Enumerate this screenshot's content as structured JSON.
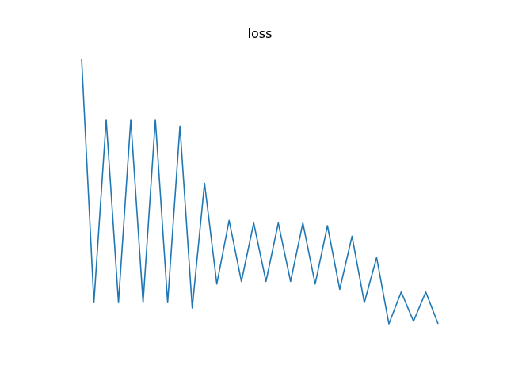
{
  "chart_data": {
    "type": "line",
    "title": "loss",
    "xlabel": "",
    "ylabel": "",
    "axes_visible": false,
    "grid": false,
    "color": "#1f77b4",
    "ylim": [
      0.0,
      1.0
    ],
    "series": [
      {
        "values": [
          1.0,
          0.08,
          0.77,
          0.08,
          0.77,
          0.08,
          0.77,
          0.08,
          0.745,
          0.06,
          0.53,
          0.15,
          0.39,
          0.16,
          0.38,
          0.16,
          0.38,
          0.16,
          0.38,
          0.15,
          0.37,
          0.13,
          0.33,
          0.08,
          0.25,
          0.0,
          0.12,
          0.01,
          0.12,
          0.0
        ]
      }
    ]
  }
}
